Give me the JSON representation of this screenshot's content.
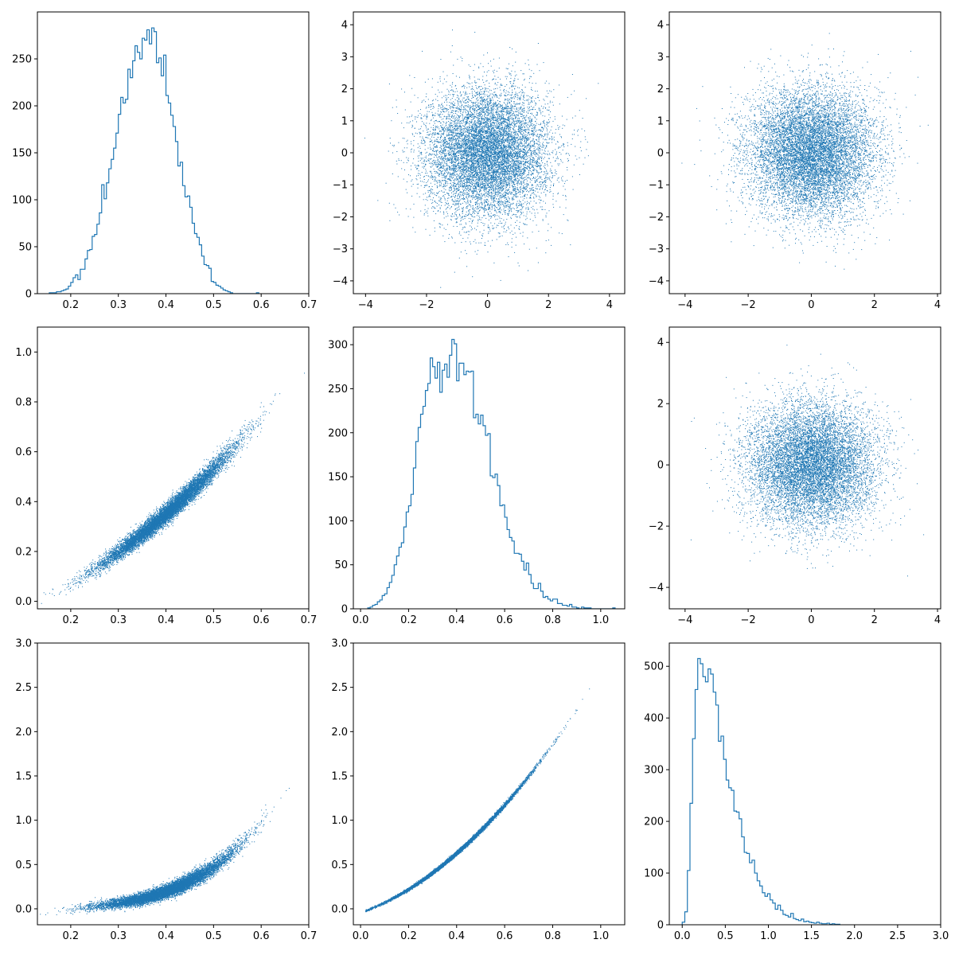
{
  "colors": {
    "series": "#1f77b4",
    "axes": "#000000",
    "background": "#ffffff"
  },
  "chart_data": [
    {
      "panel": "r1c1",
      "type": "histogram",
      "style": "step",
      "xlim": [
        0.13,
        0.7
      ],
      "ylim": [
        0,
        300
      ],
      "xticks": [
        0.2,
        0.3,
        0.4,
        0.5,
        0.6,
        0.7
      ],
      "yticks": [
        0,
        50,
        100,
        150,
        200,
        250
      ],
      "bins": {
        "start": 0.155,
        "width": 0.005,
        "counts": [
          1,
          1,
          1,
          2,
          2,
          3,
          4,
          5,
          8,
          12,
          17,
          20,
          15,
          26,
          26,
          37,
          46,
          47,
          61,
          63,
          74,
          86,
          116,
          101,
          118,
          133,
          143,
          155,
          171,
          191,
          209,
          203,
          207,
          239,
          230,
          248,
          264,
          257,
          250,
          272,
          270,
          281,
          266,
          283,
          279,
          246,
          251,
          232,
          254,
          211,
          203,
          190,
          178,
          162,
          136,
          140,
          115,
          103,
          104,
          92,
          75,
          64,
          60,
          52,
          40,
          31,
          30,
          27,
          13,
          12,
          9,
          8,
          6,
          4,
          3,
          2,
          1,
          0,
          0,
          0,
          0,
          0,
          0,
          0,
          0,
          0,
          0,
          1
        ]
      },
      "title": "",
      "xlabel": "",
      "ylabel": ""
    },
    {
      "panel": "r1c2",
      "type": "scatter",
      "dist": "gaussian-cloud",
      "n_points": 10000,
      "center": [
        0,
        0
      ],
      "std": [
        1,
        1
      ],
      "xlim": [
        -4.4,
        4.5
      ],
      "ylim": [
        -4.4,
        4.4
      ],
      "xticks": [
        -4,
        -2,
        0,
        2,
        4
      ],
      "yticks": [
        -4,
        -3,
        -2,
        -1,
        0,
        1,
        2,
        3,
        4
      ],
      "title": "",
      "xlabel": "",
      "ylabel": ""
    },
    {
      "panel": "r1c3",
      "type": "scatter",
      "dist": "gaussian-cloud",
      "n_points": 10000,
      "center": [
        0,
        0
      ],
      "std": [
        1,
        1
      ],
      "xlim": [
        -4.5,
        4.1
      ],
      "ylim": [
        -4.4,
        4.4
      ],
      "xticks": [
        -4,
        -2,
        0,
        2,
        4
      ],
      "yticks": [
        -4,
        -3,
        -2,
        -1,
        0,
        1,
        2,
        3,
        4
      ],
      "title": "",
      "xlabel": "",
      "ylabel": ""
    },
    {
      "panel": "r2c1",
      "type": "scatter",
      "dist": "curve",
      "n_points": 10000,
      "relation": "y ≈ 1.35x² + 0.59x − 0.1",
      "x_mean": 0.4,
      "x_std": 0.07,
      "xlim": [
        0.13,
        0.7
      ],
      "ylim": [
        -0.03,
        1.1
      ],
      "xticks": [
        0.2,
        0.3,
        0.4,
        0.5,
        0.6,
        0.7
      ],
      "yticks": [
        0.0,
        0.2,
        0.4,
        0.6,
        0.8,
        1.0
      ],
      "title": "",
      "xlabel": "",
      "ylabel": ""
    },
    {
      "panel": "r2c2",
      "type": "histogram",
      "style": "step",
      "xlim": [
        -0.03,
        1.1
      ],
      "ylim": [
        0,
        320
      ],
      "xticks": [
        0.0,
        0.2,
        0.4,
        0.6,
        0.8,
        1.0
      ],
      "yticks": [
        0,
        50,
        100,
        150,
        200,
        250,
        300
      ],
      "bins": {
        "start": 0.03,
        "width": 0.01,
        "counts": [
          1,
          2,
          4,
          5,
          8,
          10,
          15,
          17,
          24,
          30,
          38,
          50,
          60,
          70,
          75,
          93,
          110,
          117,
          130,
          160,
          190,
          206,
          221,
          230,
          248,
          256,
          285,
          275,
          262,
          280,
          246,
          271,
          278,
          263,
          288,
          306,
          301,
          259,
          279,
          279,
          266,
          270,
          269,
          270,
          217,
          221,
          210,
          220,
          208,
          197,
          199,
          151,
          149,
          153,
          140,
          117,
          118,
          104,
          90,
          81,
          77,
          63,
          63,
          62,
          54,
          44,
          52,
          39,
          29,
          23,
          23,
          29,
          20,
          13,
          14,
          11,
          9,
          11,
          11,
          6,
          6,
          4,
          4,
          3,
          5,
          2,
          2,
          1,
          0,
          2,
          1,
          1,
          1,
          0,
          0,
          0,
          0,
          0,
          0,
          0,
          0,
          0,
          1
        ]
      },
      "title": "",
      "xlabel": "",
      "ylabel": ""
    },
    {
      "panel": "r2c3",
      "type": "scatter",
      "dist": "gaussian-cloud",
      "n_points": 10000,
      "center": [
        0,
        0
      ],
      "std": [
        1,
        1
      ],
      "xlim": [
        -4.5,
        4.1
      ],
      "ylim": [
        -4.7,
        4.5
      ],
      "xticks": [
        -4,
        -2,
        0,
        2,
        4
      ],
      "yticks": [
        -4,
        -2,
        0,
        2,
        4
      ],
      "title": "",
      "xlabel": "",
      "ylabel": ""
    },
    {
      "panel": "r3c1",
      "type": "scatter",
      "dist": "curve",
      "n_points": 10000,
      "relation": "y ≈ 12.98x³ − 8.4x² + 2.41x − 0.25",
      "x_mean": 0.4,
      "x_std": 0.07,
      "xlim": [
        0.13,
        0.7
      ],
      "ylim": [
        -0.18,
        3.0
      ],
      "xticks": [
        0.2,
        0.3,
        0.4,
        0.5,
        0.6,
        0.7
      ],
      "yticks": [
        0.0,
        0.5,
        1.0,
        1.5,
        2.0,
        2.5,
        3.0
      ],
      "title": "",
      "xlabel": "",
      "ylabel": ""
    },
    {
      "panel": "r3c2",
      "type": "scatter",
      "dist": "curve",
      "n_points": 10000,
      "relation": "y ≈ 1.75x² + 0.98x − 0.04",
      "x_mean": 0.38,
      "x_std": 0.15,
      "xlim": [
        -0.03,
        1.1
      ],
      "ylim": [
        -0.18,
        3.0
      ],
      "xticks": [
        0.0,
        0.2,
        0.4,
        0.6,
        0.8,
        1.0
      ],
      "yticks": [
        0.0,
        0.5,
        1.0,
        1.5,
        2.0,
        2.5,
        3.0
      ],
      "title": "",
      "xlabel": "",
      "ylabel": ""
    },
    {
      "panel": "r3c3",
      "type": "histogram",
      "style": "step",
      "xlim": [
        -0.15,
        3.0
      ],
      "ylim": [
        0,
        545
      ],
      "xticks": [
        0.0,
        0.5,
        1.0,
        1.5,
        2.0,
        2.5,
        3.0
      ],
      "yticks": [
        0,
        100,
        200,
        300,
        400,
        500
      ],
      "bins": {
        "start": 0.0,
        "width": 0.03,
        "counts": [
          5,
          25,
          105,
          235,
          360,
          455,
          515,
          505,
          480,
          470,
          495,
          485,
          450,
          425,
          355,
          365,
          320,
          280,
          265,
          260,
          220,
          218,
          205,
          170,
          140,
          138,
          120,
          125,
          100,
          85,
          75,
          62,
          55,
          60,
          48,
          42,
          30,
          38,
          28,
          20,
          18,
          15,
          22,
          12,
          10,
          8,
          11,
          6,
          7,
          5,
          4,
          3,
          5,
          3,
          2,
          2,
          3,
          1,
          2,
          1,
          1
        ]
      },
      "title": "",
      "xlabel": "",
      "ylabel": ""
    }
  ]
}
